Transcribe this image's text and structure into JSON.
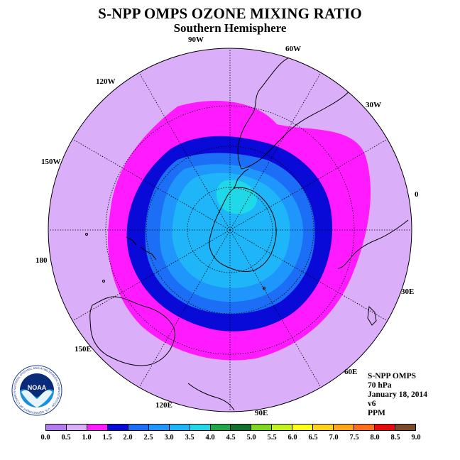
{
  "title": "S-NPP OMPS OZONE MIXING RATIO",
  "subtitle": "Southern Hemisphere",
  "longitude_labels": {
    "lon_90w": "90W",
    "lon_60w": "60W",
    "lon_30w": "30W",
    "lon_0": "0",
    "lon_30e": "30E",
    "lon_60e": "60E",
    "lon_90e": "90E",
    "lon_120e": "120E",
    "lon_150e": "150E",
    "lon_180": "180",
    "lon_150w": "150W",
    "lon_120w": "120W"
  },
  "info": {
    "instrument": "S-NPP OMPS",
    "level": "70 hPa",
    "date": "January 18, 2014",
    "version": "v6",
    "units": "PPM"
  },
  "logo": {
    "text": "NOAA",
    "ring_text": "NATIONAL OCEANIC AND ATMOSPHERIC ADMINISTRATION · U.S. DEPARTMENT OF COMMERCE"
  },
  "colorbar": {
    "ticks": [
      "0.0",
      "0.5",
      "1.0",
      "1.5",
      "2.0",
      "2.5",
      "3.0",
      "3.5",
      "4.0",
      "4.5",
      "5.0",
      "5.5",
      "6.0",
      "6.5",
      "7.0",
      "7.5",
      "8.0",
      "8.5",
      "9.0"
    ],
    "colors": [
      "#b57bf2",
      "#dbaef9",
      "#ff1aff",
      "#0a0ad8",
      "#1c6ef7",
      "#1e96fb",
      "#1eb6f9",
      "#1fd8e8",
      "#1ea848",
      "#12702e",
      "#80d81e",
      "#c4f01e",
      "#ffff1e",
      "#ffd21a",
      "#ffa51a",
      "#ff6e1a",
      "#e60d0d",
      "#7a4a2a"
    ]
  },
  "map_levels": [
    {
      "min": 0.5,
      "max": 1.0,
      "color": "#dbaef9"
    },
    {
      "min": 1.0,
      "max": 1.5,
      "color": "#ff1aff"
    },
    {
      "min": 1.5,
      "max": 2.0,
      "color": "#0a0ad8"
    },
    {
      "min": 2.0,
      "max": 2.5,
      "color": "#1c6ef7"
    },
    {
      "min": 2.5,
      "max": 3.0,
      "color": "#1e96fb"
    },
    {
      "min": 3.0,
      "max": 3.5,
      "color": "#1eb6f9"
    },
    {
      "min": 3.5,
      "max": 4.0,
      "color": "#1fd8e8"
    }
  ]
}
